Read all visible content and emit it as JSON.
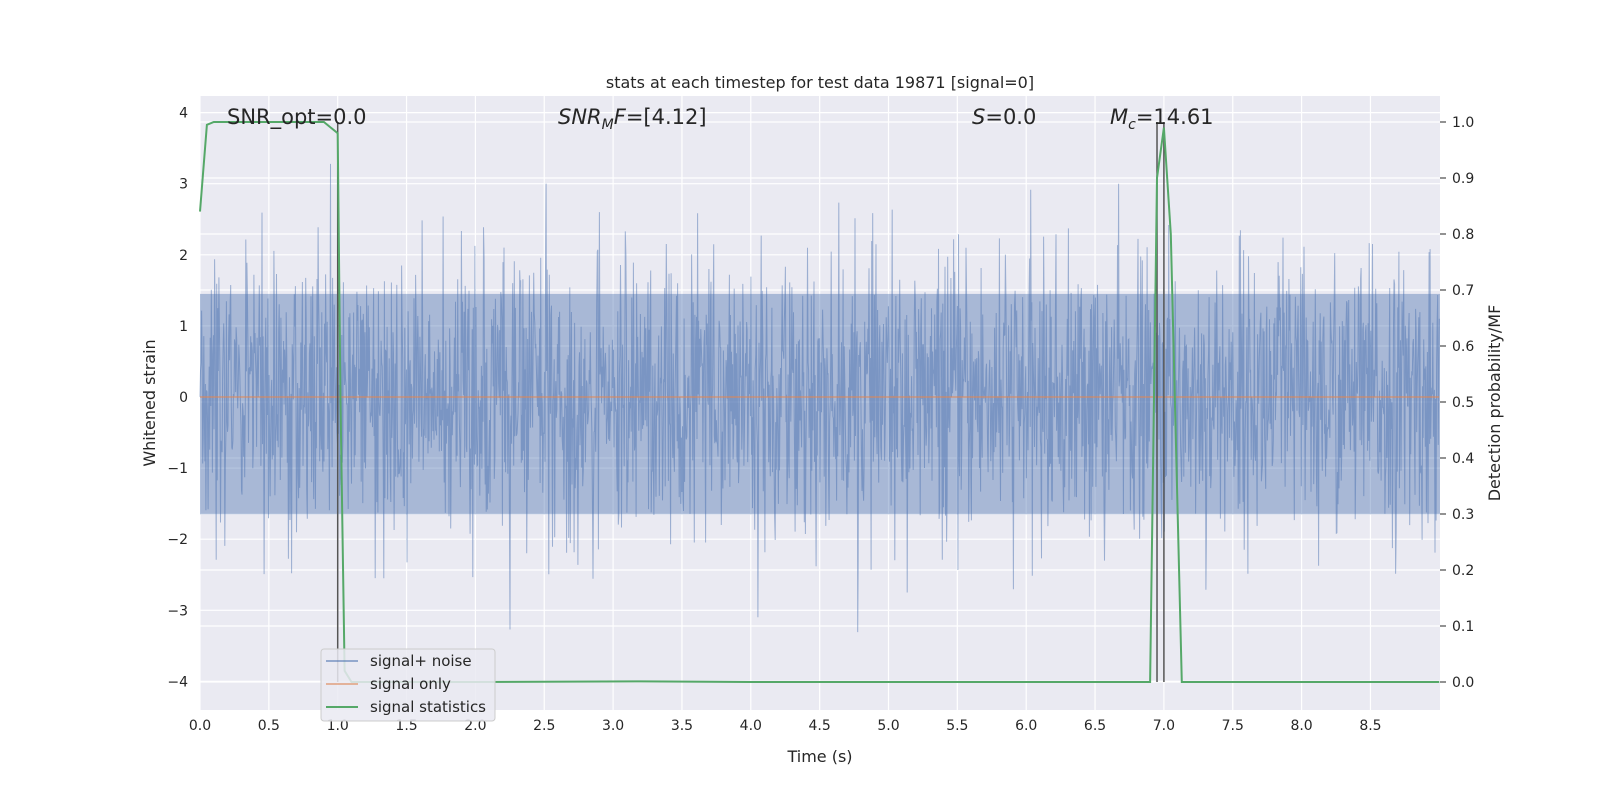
{
  "chart_data": {
    "type": "line",
    "title": "stats at each timestep for test data 19871 [signal=0]",
    "xlabel": "Time (s)",
    "ylabel": "Whitened strain",
    "ylabel_right": "Detection probability/MF",
    "xlim": [
      0.0,
      9.0
    ],
    "ylim": [
      -4.3,
      4.2
    ],
    "ylim_right": [
      -0.048,
      1.045
    ],
    "x_ticks": [
      "0.0",
      "0.5",
      "1.0",
      "1.5",
      "2.0",
      "2.5",
      "3.0",
      "3.5",
      "4.0",
      "4.5",
      "5.0",
      "5.5",
      "6.0",
      "6.5",
      "7.0",
      "7.5",
      "8.0",
      "8.5"
    ],
    "y_ticks": [
      "4",
      "3",
      "2",
      "1",
      "0",
      "−1",
      "−2",
      "−3",
      "−4"
    ],
    "y_ticks_right": [
      "1.0",
      "0.9",
      "0.8",
      "0.7",
      "0.6",
      "0.5",
      "0.4",
      "0.3",
      "0.2",
      "0.1",
      "0.0"
    ],
    "grid": true,
    "legend_position": "lower-left",
    "annotations": {
      "snr_opt": "SNR_opt=0.0",
      "snr_mf_italic": "SNR",
      "snr_mf_sub": "M",
      "snr_mf_italic2": "F",
      "snr_mf_value": "=[4.12]",
      "s_italic": "S",
      "s_value": "=0.0",
      "mc_italic": "M",
      "mc_sub": "c",
      "mc_value": "=14.61"
    },
    "series": [
      {
        "name": "signal+ noise",
        "color": "#4c72b0",
        "description_values": {
          "typical_range": [
            -1.7,
            1.5
          ],
          "max_peaks": [
            3.5,
            3.9,
            3.55,
            3.6
          ],
          "min_peaks": [
            -3.35,
            -3.6,
            -4.0,
            -3.5
          ]
        }
      },
      {
        "name": "signal only",
        "color": "#dd8452",
        "x": [
          0.0,
          9.0
        ],
        "y": [
          0.0,
          0.0
        ]
      },
      {
        "name": "signal statistics",
        "color": "#55a868",
        "axis": "right",
        "x": [
          0.0,
          0.05,
          0.1,
          0.2,
          0.5,
          0.9,
          0.95,
          1.0,
          1.02,
          1.05,
          1.1,
          2.0,
          3.2,
          4.0,
          6.9,
          6.95,
          7.0,
          7.05,
          7.13,
          9.0
        ],
        "y": [
          0.84,
          0.995,
          1.0,
          1.0,
          1.0,
          1.0,
          0.99,
          0.98,
          0.5,
          0.02,
          0.0,
          0.0,
          0.001,
          0.0,
          0.0,
          0.9,
          0.99,
          0.8,
          0.0,
          0.0
        ]
      }
    ],
    "vertical_markers_x": [
      1.0,
      6.95,
      7.0
    ]
  },
  "legend": {
    "items": [
      {
        "label": "signal+ noise",
        "color": "#4c72b0"
      },
      {
        "label": "signal only",
        "color": "#dd8452"
      },
      {
        "label": "signal statistics",
        "color": "#55a868"
      }
    ]
  }
}
